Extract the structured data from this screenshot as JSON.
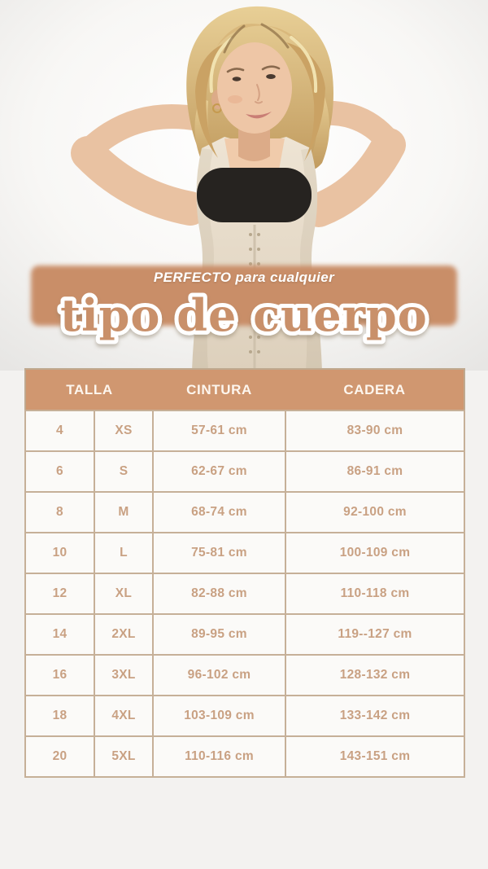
{
  "photo": {
    "alt": "woman-in-beige-shapewear-bodysuit-with-black-strapless-band"
  },
  "banner": {
    "eyebrow_bold": "PERFECTO",
    "eyebrow_rest": "para cualquier",
    "headline": "tipo de cuerpo"
  },
  "table": {
    "headers": [
      "TALLA",
      "CINTURA",
      "CADERA"
    ],
    "rows": [
      [
        "4",
        "XS",
        "57-61 cm",
        "83-90 cm"
      ],
      [
        "6",
        "S",
        "62-67 cm",
        "86-91 cm"
      ],
      [
        "8",
        "M",
        "68-74 cm",
        "92-100 cm"
      ],
      [
        "10",
        "L",
        "75-81 cm",
        "100-109 cm"
      ],
      [
        "12",
        "XL",
        "82-88 cm",
        "110-118 cm"
      ],
      [
        "14",
        "2XL",
        "89-95 cm",
        "119--127 cm"
      ],
      [
        "16",
        "3XL",
        "96-102 cm",
        "128-132 cm"
      ],
      [
        "18",
        "4XL",
        "103-109 cm",
        "133-142 cm"
      ],
      [
        "20",
        "5XL",
        "110-116 cm",
        "143-151 cm"
      ]
    ]
  },
  "colors": {
    "page_bg": "#f3f2f0",
    "banner_bg": "#c98e68",
    "headline_fill": "#c9906b",
    "headline_outline": "#ffffff",
    "table_header_bg": "#d09770",
    "table_header_text": "#fdf6ee",
    "table_cell_text": "#c9a183",
    "table_border": "#c6b098",
    "band_black": "#262320",
    "suit_beige": "#e6dccb",
    "skin": "#ecc3a2",
    "hair_blonde": "#d8b477"
  }
}
